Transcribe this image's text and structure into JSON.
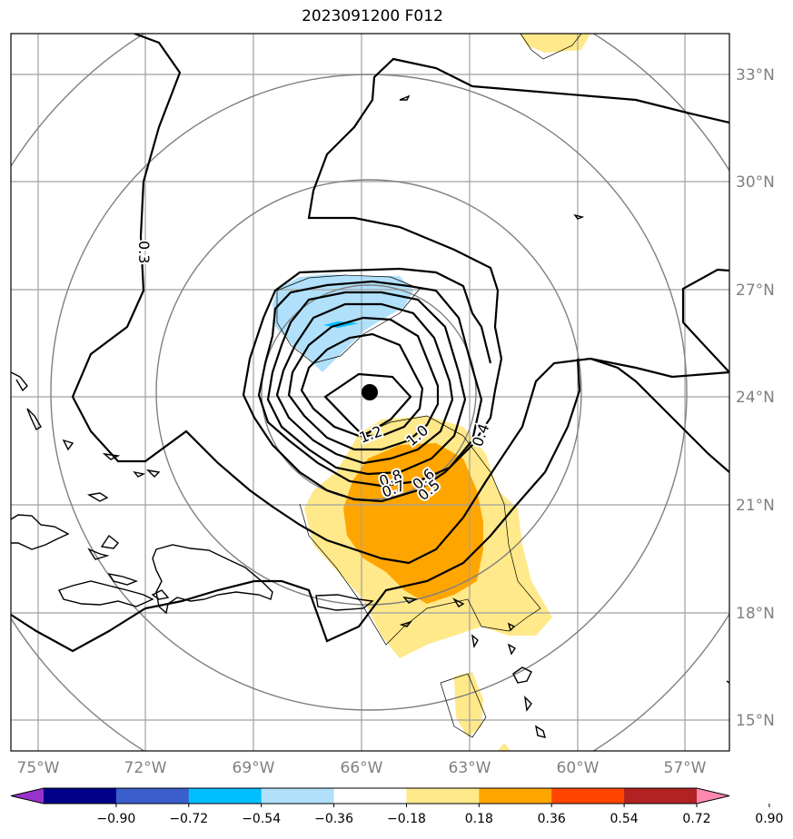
{
  "title": "2023091200 F012",
  "map": {
    "lon_labels": [
      "75°W",
      "72°W",
      "69°W",
      "66°W",
      "63°W",
      "60°W",
      "57°W"
    ],
    "lat_labels": [
      "33°N",
      "30°N",
      "27°N",
      "24°N",
      "21°N",
      "18°N",
      "15°N"
    ],
    "contour_labels": [
      "0.3",
      "1.2",
      "1.0",
      "0.8",
      "0.7",
      "0.6",
      "0.5",
      "0.4"
    ],
    "center_marker": "storm-center",
    "colors": {
      "grid": "#a0a0a0",
      "range_rings": "#808080",
      "coast": "#000000",
      "contour": "#000000",
      "positive_light": "#ffe98a",
      "positive_dark": "#ffa500",
      "negative_light": "#b0e0fa",
      "negative_dark": "#00bfff"
    }
  },
  "colorbar": {
    "ticks": [
      "−0.90",
      "−0.72",
      "−0.54",
      "−0.36",
      "−0.18",
      "0.18",
      "0.36",
      "0.54",
      "0.72",
      "0.90"
    ],
    "colors": [
      "#9932cc",
      "#00008b",
      "#3a5fcd",
      "#00bfff",
      "#b0e0fa",
      "#ffffff",
      "#ffe98a",
      "#ffa500",
      "#ff4500",
      "#b22222",
      "#ff88b0"
    ]
  }
}
